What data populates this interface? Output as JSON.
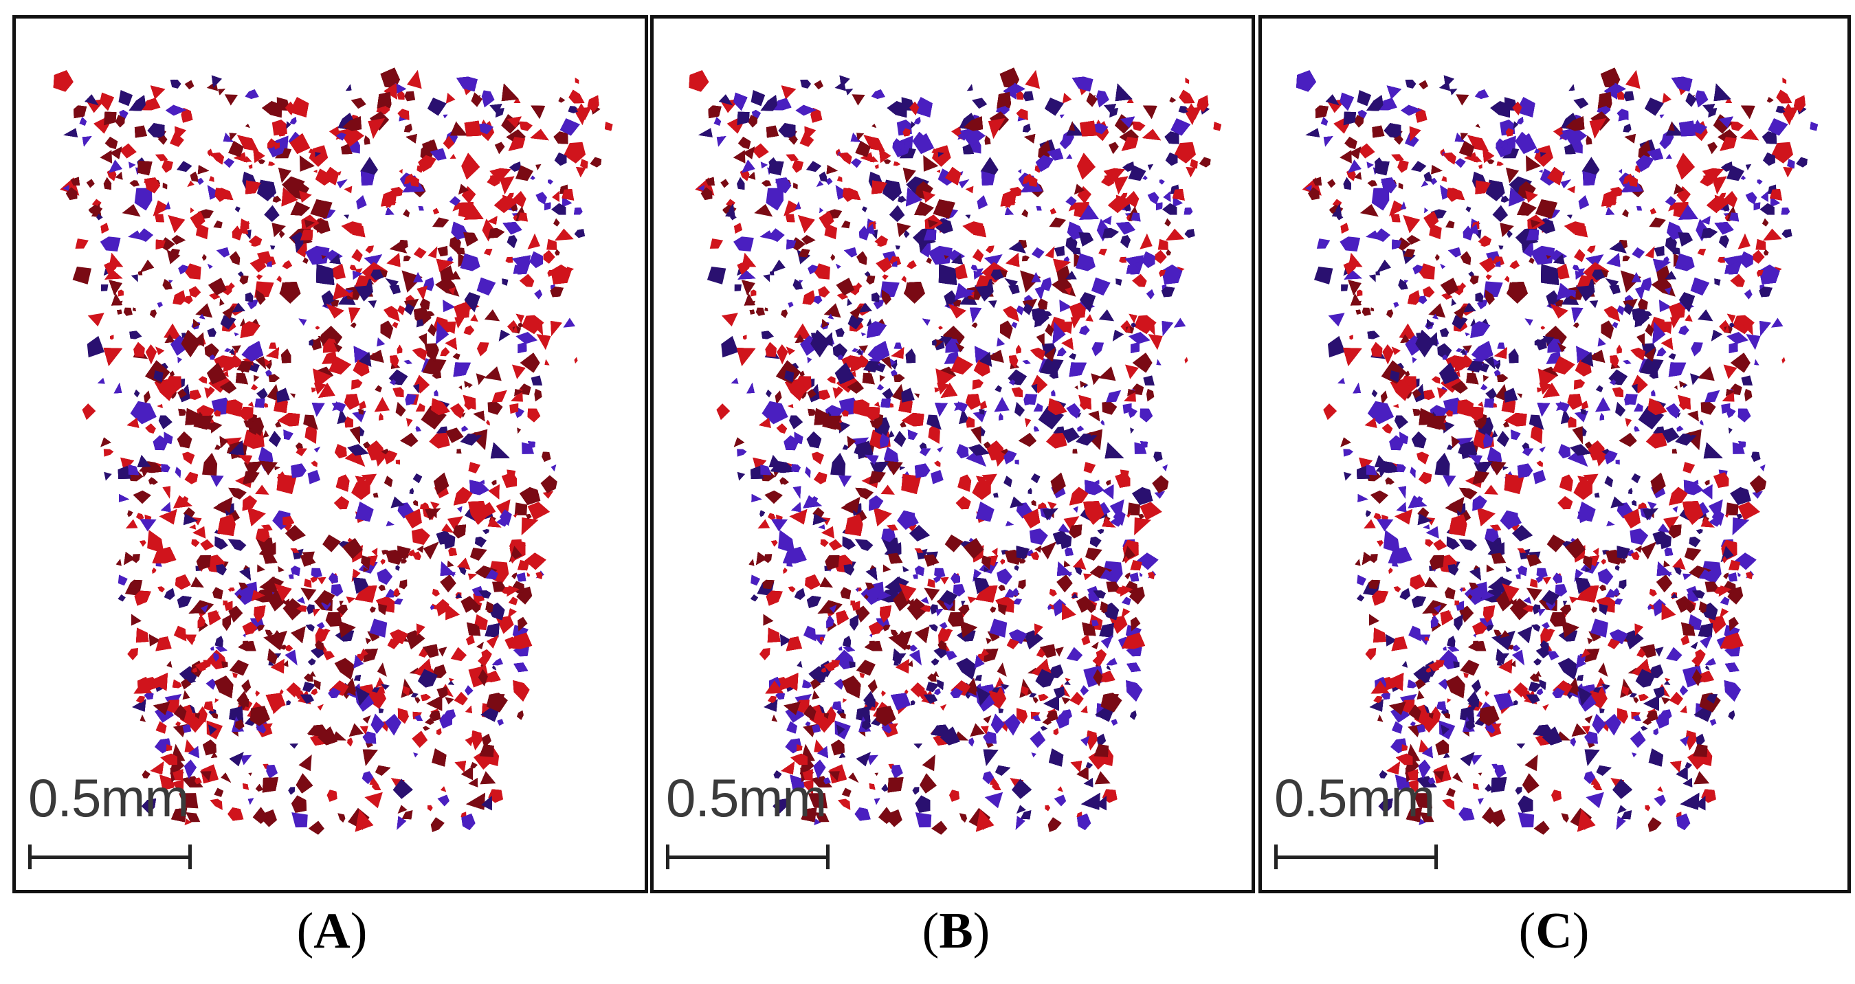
{
  "panels": [
    {
      "id": "A",
      "caption_open": "(",
      "caption_letter": "A",
      "caption_close": ")",
      "scale_label": "0.5mm",
      "red_share": 0.72
    },
    {
      "id": "B",
      "caption_open": "(",
      "caption_letter": "B",
      "caption_close": ")",
      "scale_label": "0.5mm",
      "red_share": 0.5
    },
    {
      "id": "C",
      "caption_open": "(",
      "caption_letter": "C",
      "caption_close": ")",
      "scale_label": "0.5mm",
      "red_share": 0.45
    }
  ],
  "colors": {
    "red": "#d0141c",
    "dark_red": "#7a0a14",
    "blue": "#4a1fc0",
    "dark_blue": "#2a1070",
    "border": "#111111"
  }
}
